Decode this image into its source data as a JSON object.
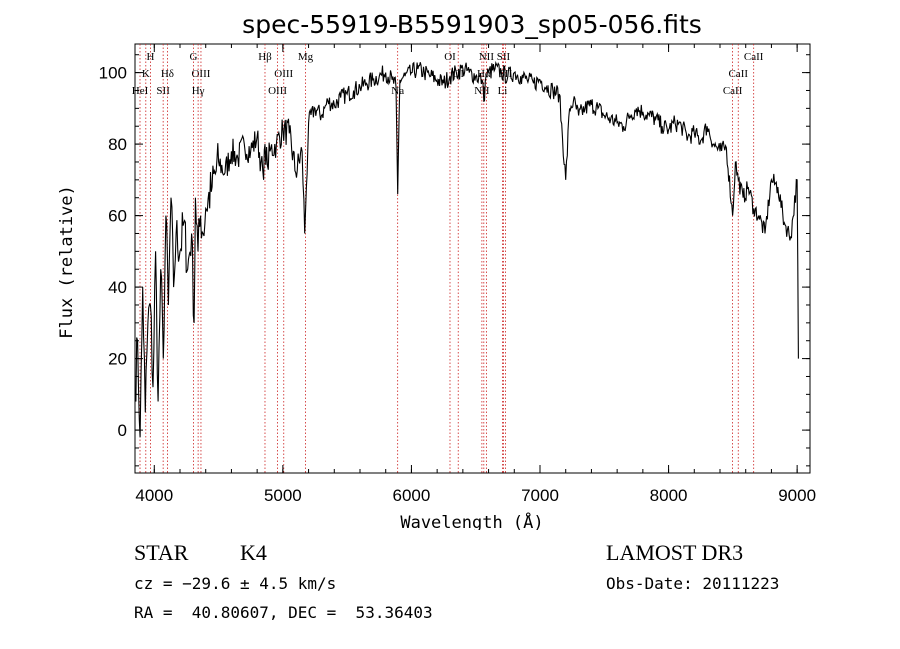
{
  "chart_data": {
    "type": "line",
    "title": "spec-55919-B5591903_sp05-056.fits",
    "xlabel": "Wavelength (Å)",
    "ylabel": "Flux (relative)",
    "xlim": [
      3850,
      9100
    ],
    "ylim": [
      -12,
      108
    ],
    "xticks": [
      4000,
      5000,
      6000,
      7000,
      8000,
      9000
    ],
    "yticks": [
      0,
      20,
      40,
      60,
      80,
      100
    ],
    "series": [
      {
        "name": "flux",
        "x": [
          3850,
          3870,
          3890,
          3910,
          3930,
          3950,
          3970,
          3990,
          4010,
          4030,
          4050,
          4070,
          4090,
          4110,
          4130,
          4150,
          4170,
          4200,
          4230,
          4260,
          4290,
          4310,
          4320,
          4340,
          4360,
          4380,
          4400,
          4450,
          4500,
          4550,
          4600,
          4650,
          4700,
          4750,
          4800,
          4830,
          4850,
          4861,
          4880,
          4900,
          4950,
          5000,
          5050,
          5100,
          5150,
          5170,
          5183,
          5200,
          5250,
          5300,
          5350,
          5400,
          5450,
          5500,
          5550,
          5600,
          5650,
          5700,
          5750,
          5800,
          5850,
          5880,
          5893,
          5910,
          5950,
          6000,
          6050,
          6100,
          6150,
          6200,
          6250,
          6300,
          6350,
          6400,
          6450,
          6500,
          6550,
          6563,
          6580,
          6600,
          6650,
          6700,
          6750,
          6800,
          6850,
          6900,
          6950,
          7000,
          7050,
          7100,
          7150,
          7200,
          7230,
          7260,
          7300,
          7350,
          7400,
          7450,
          7500,
          7550,
          7600,
          7650,
          7700,
          7750,
          7800,
          7850,
          7900,
          7950,
          8000,
          8050,
          8100,
          8150,
          8200,
          8250,
          8300,
          8350,
          8400,
          8450,
          8498,
          8520,
          8542,
          8580,
          8620,
          8662,
          8700,
          8750,
          8800,
          8850,
          8900,
          8950,
          9000,
          9010
        ],
        "y": [
          10,
          25,
          -2,
          40,
          5,
          30,
          35,
          12,
          50,
          8,
          45,
          20,
          60,
          35,
          65,
          40,
          55,
          50,
          58,
          45,
          55,
          30,
          65,
          50,
          60,
          55,
          62,
          68,
          75,
          72,
          78,
          76,
          80,
          78,
          82,
          75,
          70,
          80,
          74,
          78,
          80,
          84,
          83,
          72,
          78,
          55,
          68,
          86,
          90,
          88,
          92,
          91,
          93,
          94,
          95,
          96,
          97,
          98,
          99,
          100,
          98,
          96,
          66,
          98,
          99,
          100,
          101,
          100,
          99,
          98,
          97,
          99,
          100,
          101,
          100,
          99,
          98,
          92,
          99,
          100,
          101,
          100,
          99,
          100,
          99,
          98,
          97,
          98,
          96,
          95,
          94,
          70,
          90,
          92,
          88,
          90,
          91,
          90,
          88,
          87,
          86,
          85,
          88,
          90,
          89,
          88,
          87,
          85,
          84,
          86,
          85,
          82,
          83,
          81,
          85,
          80,
          78,
          79,
          60,
          75,
          70,
          65,
          68,
          62,
          60,
          55,
          70,
          68,
          58,
          54,
          70,
          20
        ]
      }
    ],
    "spectral_lines": [
      {
        "label": "H",
        "x": 3970,
        "row": 0
      },
      {
        "label": "K",
        "x": 3934,
        "row": 1
      },
      {
        "label": "HeI",
        "x": 3889,
        "row": 2
      },
      {
        "label": "SII",
        "x": 4069,
        "row": 2
      },
      {
        "label": "Hδ",
        "x": 4102,
        "row": 1
      },
      {
        "label": "G",
        "x": 4305,
        "row": 0
      },
      {
        "label": "OIII",
        "x": 4363,
        "row": 1
      },
      {
        "label": "Hγ",
        "x": 4341,
        "row": 2
      },
      {
        "label": "Hβ",
        "x": 4861,
        "row": 0
      },
      {
        "label": "OIII",
        "x": 5007,
        "row": 1
      },
      {
        "label": "OIII",
        "x": 4959,
        "row": 2
      },
      {
        "label": "Mg",
        "x": 5176,
        "row": 0
      },
      {
        "label": "Na",
        "x": 5893,
        "row": 2
      },
      {
        "label": "OI",
        "x": 6300,
        "row": 0
      },
      {
        "label": "OI",
        "x": 6364,
        "row": 1
      },
      {
        "label": "NII",
        "x": 6548,
        "row": 2
      },
      {
        "label": "Hα",
        "x": 6563,
        "row": 1
      },
      {
        "label": "NII",
        "x": 6583,
        "row": 0
      },
      {
        "label": "SII",
        "x": 6716,
        "row": 0
      },
      {
        "label": "SII",
        "x": 6731,
        "row": 1
      },
      {
        "label": "Li",
        "x": 6708,
        "row": 2
      },
      {
        "label": "CaII",
        "x": 8498,
        "row": 2
      },
      {
        "label": "CaII",
        "x": 8542,
        "row": 1
      },
      {
        "label": "CaII",
        "x": 8662,
        "row": 0
      }
    ]
  },
  "info": {
    "object_class": "STAR",
    "subclass": "K4",
    "survey": "LAMOST DR3",
    "cz": "cz = −29.6 ± 4.5 km/s",
    "obs_date": "Obs-Date: 20111223",
    "coords": "RA =  40.80607, DEC =  53.36403"
  },
  "colors": {
    "line_marker": "#cc2222",
    "spectrum": "#000000"
  }
}
